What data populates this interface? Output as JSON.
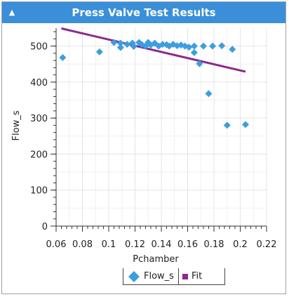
{
  "panel": {
    "title": "Press Valve Test Results",
    "collapse_icon": "caret-up-icon",
    "accent_color": "#3a8fd8"
  },
  "chart_data": {
    "type": "scatter",
    "xlabel": "Pchamber",
    "ylabel": "Flow_s",
    "xlim": [
      0.06,
      0.22
    ],
    "ylim": [
      0,
      550
    ],
    "x_ticks": [
      "0.06",
      "0.08",
      "0.1",
      "0.12",
      "0.14",
      "0.16",
      "0.18",
      "0.2",
      "0.22"
    ],
    "y_ticks": [
      "0",
      "100",
      "200",
      "300",
      "400",
      "500"
    ],
    "grid": true,
    "legend_position": "bottom",
    "series": [
      {
        "name": "Flow_s",
        "marker": "diamond",
        "color": "#3b9ee0",
        "points": [
          [
            0.065,
            468
          ],
          [
            0.093,
            484
          ],
          [
            0.104,
            510
          ],
          [
            0.109,
            508
          ],
          [
            0.109,
            496
          ],
          [
            0.114,
            505
          ],
          [
            0.118,
            508
          ],
          [
            0.119,
            499
          ],
          [
            0.123,
            510
          ],
          [
            0.125,
            505
          ],
          [
            0.128,
            500
          ],
          [
            0.13,
            510
          ],
          [
            0.132,
            503
          ],
          [
            0.135,
            508
          ],
          [
            0.138,
            500
          ],
          [
            0.141,
            505
          ],
          [
            0.144,
            504
          ],
          [
            0.146,
            500
          ],
          [
            0.149,
            505
          ],
          [
            0.152,
            501
          ],
          [
            0.155,
            503
          ],
          [
            0.158,
            500
          ],
          [
            0.161,
            497
          ],
          [
            0.165,
            500
          ],
          [
            0.165,
            482
          ],
          [
            0.169,
            451
          ],
          [
            0.172,
            500
          ],
          [
            0.176,
            368
          ],
          [
            0.179,
            500
          ],
          [
            0.186,
            501
          ],
          [
            0.19,
            280
          ],
          [
            0.194,
            491
          ],
          [
            0.204,
            282
          ]
        ]
      },
      {
        "name": "Fit",
        "marker": "square",
        "color": "#8b2a8c",
        "type": "line",
        "points": [
          [
            0.064,
            549
          ],
          [
            0.204,
            429
          ]
        ]
      }
    ]
  }
}
